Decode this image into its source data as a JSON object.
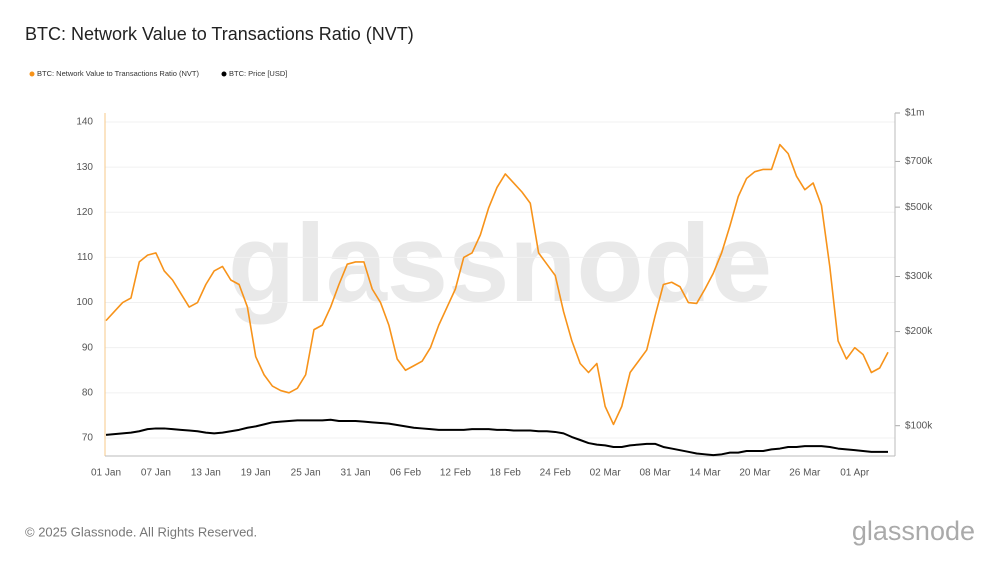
{
  "chart_data": {
    "type": "line",
    "title": "BTC: Network Value to Transactions Ratio (NVT)",
    "watermark": "glassnode",
    "footer": "© 2025 Glassnode. All Rights Reserved.",
    "logo": "glassnode",
    "x": [
      "01 Jan",
      "02 Jan",
      "03 Jan",
      "04 Jan",
      "05 Jan",
      "06 Jan",
      "07 Jan",
      "08 Jan",
      "09 Jan",
      "10 Jan",
      "11 Jan",
      "12 Jan",
      "13 Jan",
      "14 Jan",
      "15 Jan",
      "16 Jan",
      "17 Jan",
      "18 Jan",
      "19 Jan",
      "20 Jan",
      "21 Jan",
      "22 Jan",
      "23 Jan",
      "24 Jan",
      "25 Jan",
      "26 Jan",
      "27 Jan",
      "28 Jan",
      "29 Jan",
      "30 Jan",
      "31 Jan",
      "01 Feb",
      "02 Feb",
      "03 Feb",
      "04 Feb",
      "05 Feb",
      "06 Feb",
      "07 Feb",
      "08 Feb",
      "09 Feb",
      "10 Feb",
      "11 Feb",
      "12 Feb",
      "13 Feb",
      "14 Feb",
      "15 Feb",
      "16 Feb",
      "17 Feb",
      "18 Feb",
      "19 Feb",
      "20 Feb",
      "21 Feb",
      "22 Feb",
      "23 Feb",
      "24 Feb",
      "25 Feb",
      "26 Feb",
      "27 Feb",
      "28 Feb",
      "01 Mar",
      "02 Mar",
      "03 Mar",
      "04 Mar",
      "05 Mar",
      "06 Mar",
      "07 Mar",
      "08 Mar",
      "09 Mar",
      "10 Mar",
      "11 Mar",
      "12 Mar",
      "13 Mar",
      "14 Mar",
      "15 Mar",
      "16 Mar",
      "17 Mar",
      "18 Mar",
      "19 Mar",
      "20 Mar",
      "21 Mar",
      "22 Mar",
      "23 Mar",
      "24 Mar",
      "25 Mar",
      "26 Mar",
      "27 Mar",
      "28 Mar",
      "29 Mar",
      "30 Mar",
      "31 Mar",
      "01 Apr",
      "02 Apr",
      "03 Apr",
      "04 Apr",
      "05 Apr"
    ],
    "xticks": [
      "01 Jan",
      "07 Jan",
      "13 Jan",
      "19 Jan",
      "25 Jan",
      "31 Jan",
      "06 Feb",
      "12 Feb",
      "18 Feb",
      "24 Feb",
      "02 Mar",
      "08 Mar",
      "14 Mar",
      "20 Mar",
      "26 Mar",
      "01 Apr"
    ],
    "series": [
      {
        "name": "BTC: Network Value to Transactions Ratio (NVT)",
        "color": "#f7931a",
        "axis": "y",
        "values": [
          96,
          98,
          100,
          101,
          109,
          110.5,
          111,
          107,
          105,
          102,
          99,
          100,
          104,
          107,
          108,
          105,
          104,
          99,
          88,
          84,
          81.5,
          80.5,
          80,
          81,
          84,
          94,
          95,
          99,
          104,
          108.5,
          109,
          109,
          103,
          100,
          95,
          87.5,
          85,
          86,
          87,
          90,
          95,
          99,
          103,
          110,
          111,
          115,
          121,
          125.5,
          128.5,
          126.5,
          124.5,
          122,
          111,
          108.5,
          106,
          98,
          91.5,
          86.5,
          84.5,
          86.5,
          77,
          73,
          77,
          84.5,
          87,
          89.5,
          97,
          104,
          104.5,
          103.5,
          100,
          99.8,
          103,
          106.5,
          111,
          117,
          123.5,
          127.5,
          129,
          129.5,
          129.5,
          135,
          133,
          128,
          125,
          126.5,
          121.5,
          108,
          91.5,
          87.5,
          90,
          88.5,
          84.5,
          85.5,
          89
        ]
      },
      {
        "name": "BTC: Price [USD]",
        "color": "#000000",
        "axis": "y2",
        "values": [
          93500,
          94000,
          94500,
          95000,
          96000,
          97500,
          98000,
          98000,
          97500,
          97000,
          96500,
          96000,
          95000,
          94500,
          95000,
          96000,
          97000,
          98500,
          99500,
          101000,
          102500,
          103000,
          103500,
          104000,
          104000,
          104000,
          104000,
          104500,
          103500,
          103500,
          103500,
          103000,
          102500,
          102000,
          101500,
          100500,
          99500,
          98500,
          98000,
          97500,
          97000,
          97000,
          97000,
          97000,
          97500,
          97500,
          97500,
          97000,
          97000,
          96500,
          96500,
          96500,
          96000,
          96000,
          95500,
          94500,
          92000,
          90000,
          88000,
          87000,
          86500,
          85500,
          85500,
          86500,
          87000,
          87500,
          87500,
          85500,
          84500,
          83500,
          82500,
          81500,
          81000,
          80500,
          81000,
          82000,
          82000,
          83000,
          83000,
          83000,
          84000,
          84500,
          85500,
          85500,
          86000,
          86000,
          86000,
          85500,
          84500,
          84000,
          83500,
          83000,
          82500,
          82500,
          82500
        ]
      }
    ],
    "ylim": [
      66,
      142
    ],
    "yticks": [
      70,
      80,
      90,
      100,
      110,
      120,
      130,
      140
    ],
    "y2lim": [
      80000,
      1000000
    ],
    "y2scale": "log",
    "y2ticks": [
      {
        "value": 100000,
        "label": "$100k"
      },
      {
        "value": 200000,
        "label": "$200k"
      },
      {
        "value": 300000,
        "label": "$300k"
      },
      {
        "value": 500000,
        "label": "$500k"
      },
      {
        "value": 700000,
        "label": "$700k"
      },
      {
        "value": 1000000,
        "label": "$1m"
      }
    ],
    "grid": true,
    "legend": "top-left"
  }
}
